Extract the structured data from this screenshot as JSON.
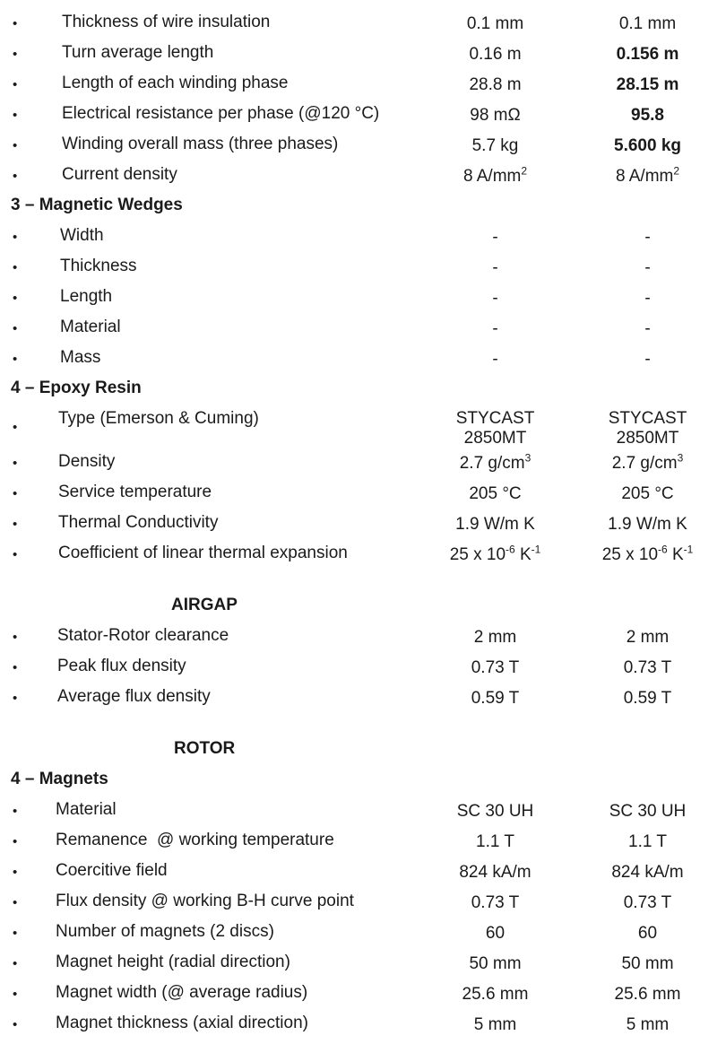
{
  "rows_top": [
    {
      "label": "Thickness of wire insulation",
      "v1": "0.1 mm",
      "v2": "0.1 mm",
      "bold2": false
    },
    {
      "label": "Turn average length",
      "v1": "0.16 m",
      "v2": "0.156 m",
      "bold2": true
    },
    {
      "label": "Length of each winding phase",
      "v1": "28.8 m",
      "v2": "28.15 m",
      "bold2": true
    },
    {
      "label": "Electrical resistance per phase (@120 °C)",
      "v1": "98 mΩ",
      "v2": "95.8",
      "bold2": true
    },
    {
      "label": "Winding overall mass (three phases)",
      "v1": "5.7 kg",
      "v2": "5.600 kg",
      "bold2": true
    },
    {
      "label": "Current density",
      "v1": "8 A/mm",
      "v1_sup": "2",
      "v2": "8 A/mm",
      "v2_sup": "2",
      "bold2": false
    }
  ],
  "section_wedges": "3 – Magnetic Wedges",
  "rows_wedges": [
    {
      "label": "Width",
      "v1": "-",
      "v2": "-"
    },
    {
      "label": "Thickness",
      "v1": "-",
      "v2": "-"
    },
    {
      "label": "Length",
      "v1": "-",
      "v2": "-"
    },
    {
      "label": "Material",
      "v1": "-",
      "v2": "-"
    },
    {
      "label": "Mass",
      "v1": "-",
      "v2": "-"
    }
  ],
  "section_epoxy": "4 – Epoxy Resin",
  "rows_epoxy": [
    {
      "label": "Type (Emerson & Cuming)",
      "v1": "STYCAST",
      "v1b": "2850MT",
      "v2": "STYCAST",
      "v2b": "2850MT"
    },
    {
      "label": "Density",
      "v1": "2.7 g/cm",
      "v1_sup": "3",
      "v2": "2.7 g/cm",
      "v2_sup": "3"
    },
    {
      "label": "Service temperature",
      "v1": "205 °C",
      "v2": "205 °C"
    },
    {
      "label": "Thermal Conductivity",
      "v1": "1.9 W/m K",
      "v2": "1.9 W/m K"
    },
    {
      "label": "Coefficient of linear thermal expansion",
      "v1": "25 x 10",
      "v1_sup": "-6",
      "v1_tail": " K",
      "v1_sup2": "-1",
      "v2": "25 x 10",
      "v2_sup": "-6",
      "v2_tail": " K",
      "v2_sup2": "-1"
    }
  ],
  "heading_airgap": "AIRGAP",
  "rows_airgap": [
    {
      "label": "Stator-Rotor clearance",
      "v1": "2 mm",
      "v2": "2 mm"
    },
    {
      "label": "Peak flux density",
      "v1": "0.73 T",
      "v2": "0.73 T"
    },
    {
      "label": "Average flux density",
      "v1": "0.59 T",
      "v2": "0.59 T"
    }
  ],
  "heading_rotor": "ROTOR",
  "section_magnets": "4 – Magnets",
  "rows_magnets": [
    {
      "label": "Material",
      "v1": "SC 30 UH",
      "v2": "SC 30 UH"
    },
    {
      "label": "Remanence  @ working temperature",
      "v1": "1.1 T",
      "v2": "1.1 T"
    },
    {
      "label": "Coercitive field",
      "v1": "824 kA/m",
      "v2": "824 kA/m"
    },
    {
      "label": "Flux density @ working B-H curve point",
      "v1": "0.73 T",
      "v2": "0.73 T"
    },
    {
      "label": "Number of magnets (2 discs)",
      "v1": "60",
      "v2": "60"
    },
    {
      "label": "Magnet height (radial direction)",
      "v1": "50 mm",
      "v2": "50 mm"
    },
    {
      "label": "Magnet width (@ average radius)",
      "v1": "25.6 mm",
      "v2": "25.6 mm"
    },
    {
      "label": "Magnet thickness (axial direction)",
      "v1": "5 mm",
      "v2": "5 mm"
    }
  ],
  "bullet": "•"
}
